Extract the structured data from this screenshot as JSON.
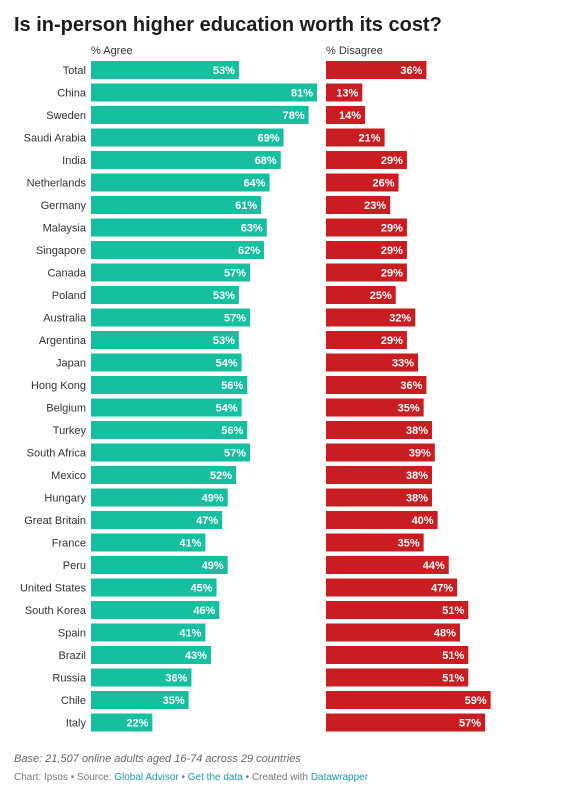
{
  "chart_data": {
    "type": "bar",
    "title": "Is in-person higher education worth its cost?",
    "categories": [
      "Total",
      "China",
      "Sweden",
      "Saudi Arabia",
      "India",
      "Netherlands",
      "Germany",
      "Malaysia",
      "Singapore",
      "Canada",
      "Poland",
      "Australia",
      "Argentina",
      "Japan",
      "Hong Kong",
      "Belgium",
      "Turkey",
      "South Africa",
      "Mexico",
      "Hungary",
      "Great Britain",
      "France",
      "Peru",
      "United States",
      "South Korea",
      "Spain",
      "Brazil",
      "Russia",
      "Chile",
      "Italy"
    ],
    "series": [
      {
        "name": "% Agree",
        "color": "#15bf9f",
        "values": [
          53,
          81,
          78,
          69,
          68,
          64,
          61,
          63,
          62,
          57,
          53,
          57,
          53,
          54,
          56,
          54,
          56,
          57,
          52,
          49,
          47,
          41,
          49,
          45,
          46,
          41,
          43,
          36,
          35,
          22
        ]
      },
      {
        "name": "% Disagree",
        "color": "#c91d22",
        "values": [
          36,
          13,
          14,
          21,
          29,
          26,
          23,
          29,
          29,
          29,
          25,
          32,
          29,
          33,
          36,
          35,
          38,
          39,
          38,
          38,
          40,
          35,
          44,
          47,
          51,
          48,
          51,
          51,
          59,
          57
        ]
      }
    ],
    "value_suffix": "%",
    "xlim": [
      0,
      81
    ],
    "grid": false,
    "notes": "Base: 21,507 online adults aged 16-74 across 29 countries"
  },
  "footer": {
    "chart_credit": "Chart: Ipsos",
    "sep1": " • Source: ",
    "source_link": "Global Advisor",
    "sep2": " • ",
    "data_link": "Get the data",
    "sep3": " • Created with ",
    "tool_link": "Datawrapper"
  }
}
